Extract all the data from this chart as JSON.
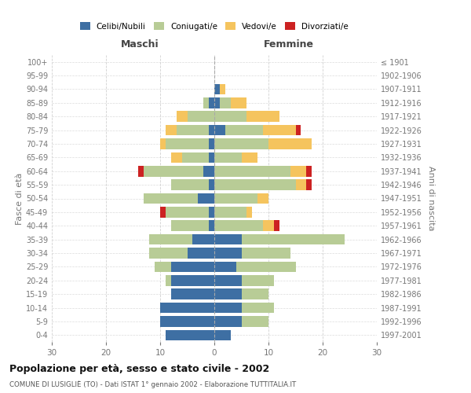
{
  "age_groups": [
    "0-4",
    "5-9",
    "10-14",
    "15-19",
    "20-24",
    "25-29",
    "30-34",
    "35-39",
    "40-44",
    "45-49",
    "50-54",
    "55-59",
    "60-64",
    "65-69",
    "70-74",
    "75-79",
    "80-84",
    "85-89",
    "90-94",
    "95-99",
    "100+"
  ],
  "birth_years": [
    "1997-2001",
    "1992-1996",
    "1987-1991",
    "1982-1986",
    "1977-1981",
    "1972-1976",
    "1967-1971",
    "1962-1966",
    "1957-1961",
    "1952-1956",
    "1947-1951",
    "1942-1946",
    "1937-1941",
    "1932-1936",
    "1927-1931",
    "1922-1926",
    "1917-1921",
    "1912-1916",
    "1907-1911",
    "1902-1906",
    "≤ 1901"
  ],
  "male_celibe": [
    9,
    10,
    10,
    8,
    8,
    8,
    5,
    4,
    1,
    1,
    3,
    1,
    2,
    1,
    1,
    1,
    0,
    1,
    0,
    0,
    0
  ],
  "male_coniugato": [
    0,
    0,
    0,
    0,
    1,
    3,
    7,
    8,
    7,
    8,
    10,
    7,
    11,
    5,
    8,
    6,
    5,
    1,
    0,
    0,
    0
  ],
  "male_vedovo": [
    0,
    0,
    0,
    0,
    0,
    0,
    0,
    0,
    0,
    0,
    0,
    0,
    0,
    2,
    1,
    2,
    2,
    0,
    0,
    0,
    0
  ],
  "male_divorziato": [
    0,
    0,
    0,
    0,
    0,
    0,
    0,
    0,
    0,
    1,
    0,
    0,
    1,
    0,
    0,
    0,
    0,
    0,
    0,
    0,
    0
  ],
  "female_celibe": [
    3,
    5,
    5,
    5,
    5,
    4,
    5,
    5,
    0,
    0,
    0,
    0,
    0,
    0,
    0,
    2,
    0,
    1,
    1,
    0,
    0
  ],
  "female_coniugato": [
    0,
    5,
    6,
    5,
    6,
    11,
    9,
    19,
    9,
    6,
    8,
    15,
    14,
    5,
    10,
    7,
    6,
    2,
    0,
    0,
    0
  ],
  "female_vedovo": [
    0,
    0,
    0,
    0,
    0,
    0,
    0,
    0,
    2,
    1,
    2,
    2,
    3,
    3,
    8,
    6,
    6,
    3,
    1,
    0,
    0
  ],
  "female_divorziato": [
    0,
    0,
    0,
    0,
    0,
    0,
    0,
    0,
    1,
    0,
    0,
    1,
    1,
    0,
    0,
    1,
    0,
    0,
    0,
    0,
    0
  ],
  "color_celibe": "#3e6fa3",
  "color_coniugato": "#b8cc96",
  "color_vedovo": "#f5c45e",
  "color_divorziato": "#cc2222",
  "title": "Popolazione per età, sesso e stato civile - 2002",
  "subtitle": "COMUNE DI LUSIGLIÈ (TO) - Dati ISTAT 1° gennaio 2002 - Elaborazione TUTTITALIA.IT",
  "xlabel_left": "Maschi",
  "xlabel_right": "Femmine",
  "ylabel_left": "Fasce di età",
  "ylabel_right": "Anni di nascita",
  "legend_labels": [
    "Celibi/Nubili",
    "Coniugati/e",
    "Vedovi/e",
    "Divorziati/e"
  ],
  "xlim": 30,
  "background_color": "#ffffff",
  "grid_color": "#cccccc"
}
